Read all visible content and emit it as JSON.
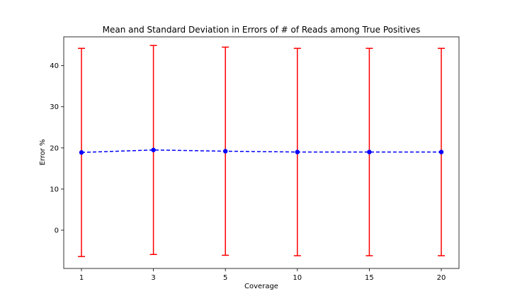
{
  "chart_data": {
    "type": "line",
    "title": "Mean and Standard Deviation in Errors of # of Reads among True Positives",
    "xlabel": "Coverage",
    "ylabel": "Error %",
    "categories": [
      "1",
      "3",
      "5",
      "10",
      "15",
      "20"
    ],
    "yticks": [
      0,
      10,
      20,
      30,
      40
    ],
    "ylim": [
      -9.3,
      47.0
    ],
    "grid": false,
    "series": [
      {
        "mean": [
          18.9,
          19.5,
          19.2,
          19.0,
          19.0,
          19.0
        ],
        "std": [
          25.3,
          25.4,
          25.3,
          25.2,
          25.2,
          25.2
        ],
        "line_color": "#0000ff",
        "errorbar_color": "#ff0000",
        "line_style": "dashed",
        "marker": "circle"
      }
    ]
  }
}
